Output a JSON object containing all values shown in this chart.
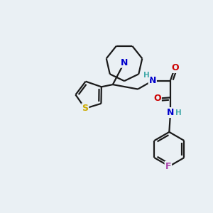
{
  "bg_color": "#eaf0f4",
  "atom_colors": {
    "N": "#0000cc",
    "O": "#cc0000",
    "S": "#ccaa00",
    "F": "#aa44aa",
    "C": "#000000",
    "H_color": "#44aaaa"
  },
  "bond_color": "#1a1a1a",
  "bond_width": 1.6
}
